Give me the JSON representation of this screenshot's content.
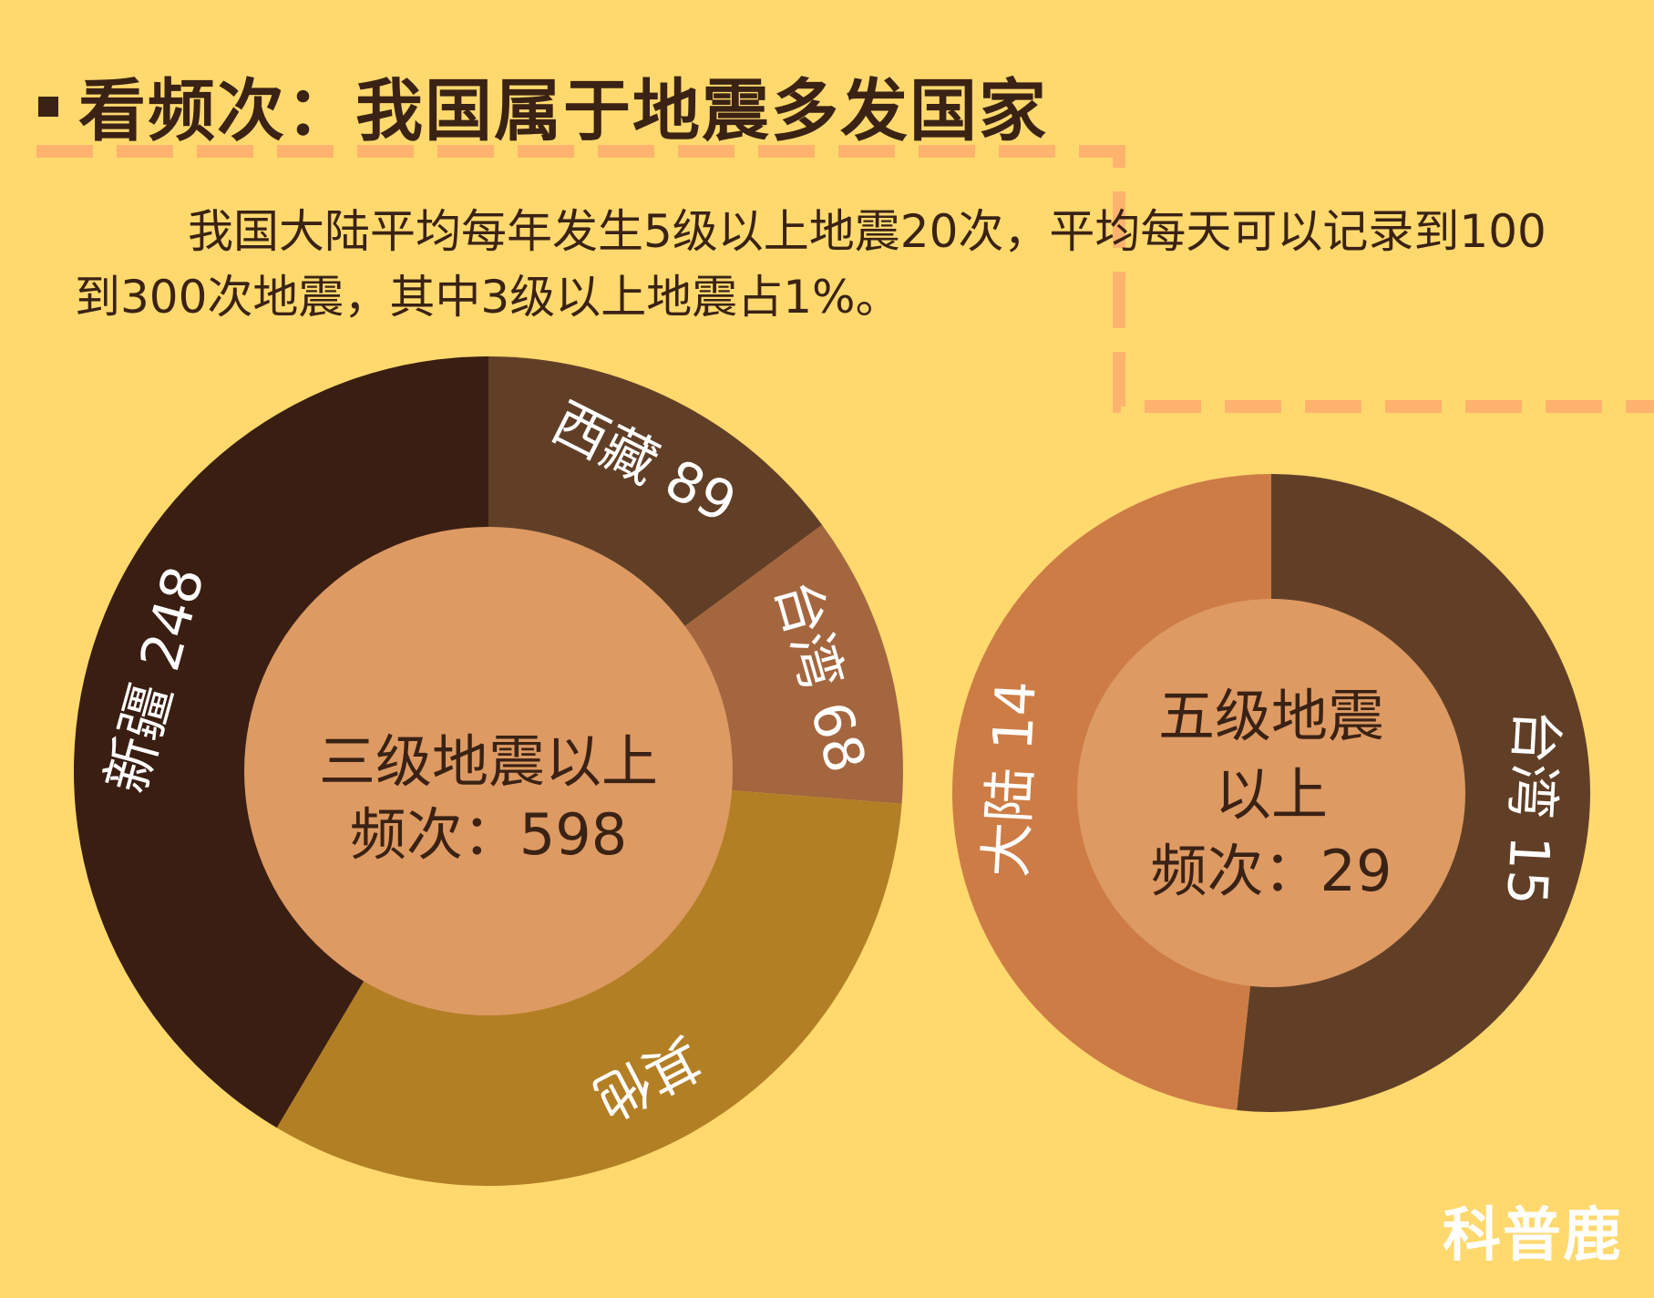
{
  "header": {
    "title": "看频次：我国属于地震多发国家"
  },
  "description": "我国大陆平均每年发生5级以上地震20次，平均每天可以记录到100到300次地震，其中3级以上地震占1%。",
  "watermark": "科普鹿",
  "colors": {
    "background": "#FFD96E",
    "dashes": "#FFB36E",
    "center": "#DE9A63",
    "text_dark": "#3A2214"
  },
  "chart_data": [
    {
      "type": "pie",
      "donut": true,
      "center_label": [
        "三级地震以上",
        "频次：598"
      ],
      "total": 598,
      "slices": [
        {
          "label": "西藏 89",
          "name": "西藏",
          "value": 89,
          "color": "#613F27"
        },
        {
          "label": "台湾 68",
          "name": "台湾",
          "value": 68,
          "color": "#A4663F"
        },
        {
          "label": "其他",
          "name": "其他",
          "value": 193,
          "color": "#B37F25"
        },
        {
          "label": "新疆 248",
          "name": "新疆",
          "value": 248,
          "color": "#3A1E12"
        }
      ]
    },
    {
      "type": "pie",
      "donut": true,
      "center_label": [
        "五级地震",
        "以上",
        "频次：29"
      ],
      "total": 29,
      "slices": [
        {
          "label": "台湾 15",
          "name": "台湾",
          "value": 15,
          "color": "#613F27"
        },
        {
          "label": "大陆 14",
          "name": "大陆",
          "value": 14,
          "color": "#CD7C45"
        }
      ]
    }
  ]
}
